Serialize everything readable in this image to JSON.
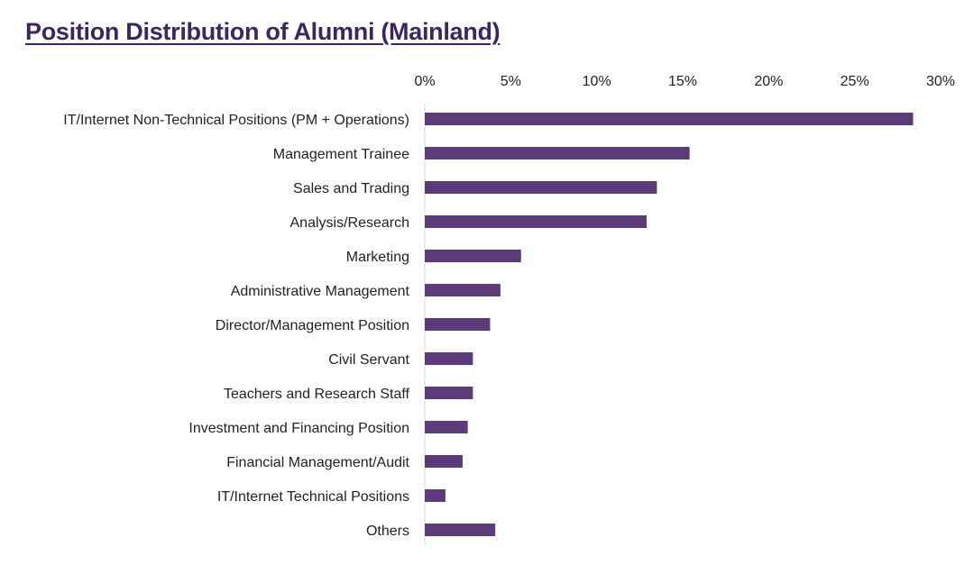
{
  "page": {
    "title": "Position Distribution of Alumni (Mainland)"
  },
  "chart_data": {
    "type": "bar",
    "orientation": "horizontal",
    "title": "Position Distribution of Alumni (Mainland)",
    "xlabel": "",
    "ylabel": "",
    "x_axis_position": "top",
    "xlim": [
      0,
      30
    ],
    "x_ticks": [
      0,
      5,
      10,
      15,
      20,
      25,
      30
    ],
    "x_tick_labels": [
      "0%",
      "5%",
      "10%",
      "15%",
      "20%",
      "25%",
      "30%"
    ],
    "grid": false,
    "legend": "none",
    "bar_color": "#5b3b78",
    "categories": [
      "IT/Internet Non-Technical Positions (PM + Operations)",
      "Management Trainee",
      "Sales and Trading",
      "Analysis/Research",
      "Marketing",
      "Administrative Management",
      "Director/Management Position",
      "Civil Servant",
      "Teachers and Research Staff",
      "Investment and Financing Position",
      "Financial Management/Audit",
      "IT/Internet Technical Positions",
      "Others"
    ],
    "values": [
      28.4,
      15.4,
      13.5,
      12.9,
      5.6,
      4.4,
      3.8,
      2.8,
      2.8,
      2.5,
      2.2,
      1.2,
      4.1
    ]
  }
}
